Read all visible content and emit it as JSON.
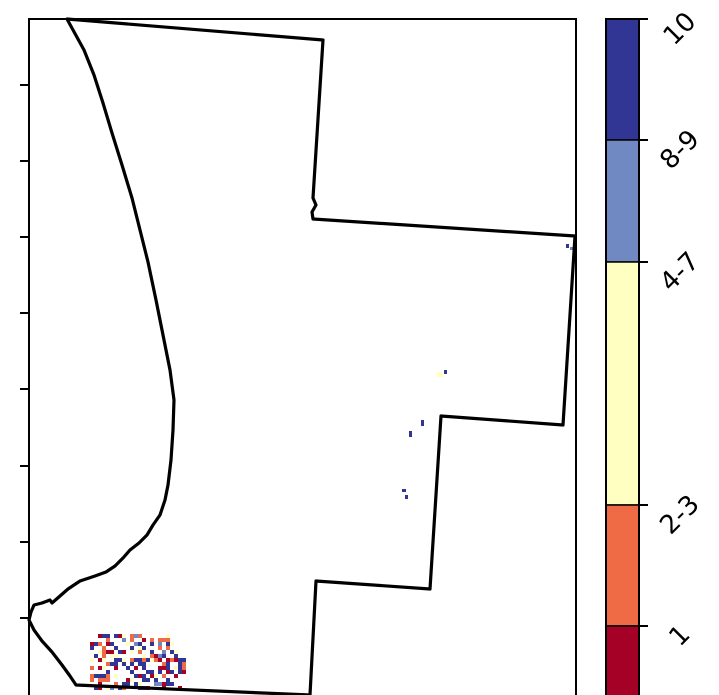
{
  "map": {
    "colorbar": {
      "classes": [
        {
          "label": "10",
          "color": "#313695"
        },
        {
          "label": "8-9",
          "color": "#7089c2"
        },
        {
          "label": "4-7",
          "color": "#ffffc2"
        },
        {
          "label": "2-3",
          "color": "#ee6b45"
        },
        {
          "label": "1",
          "color": "#a50026"
        }
      ]
    }
  }
}
